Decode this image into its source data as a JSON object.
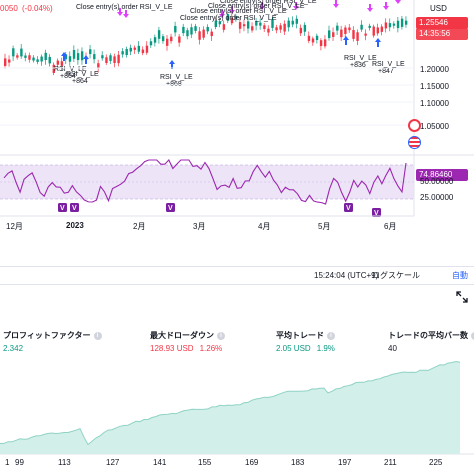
{
  "toolbar": {
    "ticker_snippet": "0050",
    "change_text": "(-0.04%)",
    "price_tag": "1.25546",
    "time_tag": "14:35:56",
    "currency_label": "USD"
  },
  "price_axis": {
    "ticks": [
      "1.20000",
      "1.15000",
      "1.10000",
      "1.05000"
    ]
  },
  "annotations": {
    "close_texts": [
      "Close entry(s) order RSI_V_LE",
      "Close entry(s) order RSI_V_LE",
      "Close entry(s) order RSI_V_LE",
      "Close entry(s) order RSI_V_LE",
      "Close entry(s) order RSI_V_LE"
    ],
    "entries": [
      {
        "label": "RSI_V_LE",
        "qty": "+864"
      },
      {
        "label": "RSI_V_LE",
        "qty": "+864"
      },
      {
        "label": "RSI_V_LE",
        "qty": "+868"
      },
      {
        "label": "RSI_V_LE",
        "qty": "+836"
      },
      {
        "label": "RSI_V_LE",
        "qty": "+847"
      }
    ],
    "v_marker": "V"
  },
  "rsi": {
    "value_tag": "74.86460",
    "ticks": [
      "50.00000",
      "25.00000"
    ]
  },
  "time_axis": {
    "labels": [
      "12月",
      "2023",
      "2月",
      "3月",
      "4月",
      "5月",
      "6月"
    ]
  },
  "status_bar": {
    "clock": "15:24:04 (UTC+9)",
    "log_scale": "ログスケール",
    "auto_scale": "自動"
  },
  "metrics": {
    "profit_factor": {
      "label": "プロフィットファクター",
      "value": "2.342"
    },
    "max_drawdown": {
      "label": "最大ドローダウン",
      "value": "128.93 USD",
      "pct": "1.26%"
    },
    "avg_trade": {
      "label": "平均トレード",
      "value": "2.05 USD",
      "pct": "1.9%"
    },
    "avg_bars": {
      "label": "トレードの平均バー数",
      "value": "40"
    }
  },
  "equity": {
    "x_labels": [
      "1",
      "99",
      "113",
      "127",
      "141",
      "155",
      "169",
      "183",
      "197",
      "211",
      "225"
    ]
  },
  "colors": {
    "up": "#089981",
    "down": "#f23645",
    "rsi_line": "#9c27b0",
    "rsi_band": "#ede4f7",
    "equity_fill": "#d3efe9",
    "equity_line": "#8fd3c5",
    "entry_arrow": "#2962ff",
    "exit_arrow": "#e040fb"
  }
}
